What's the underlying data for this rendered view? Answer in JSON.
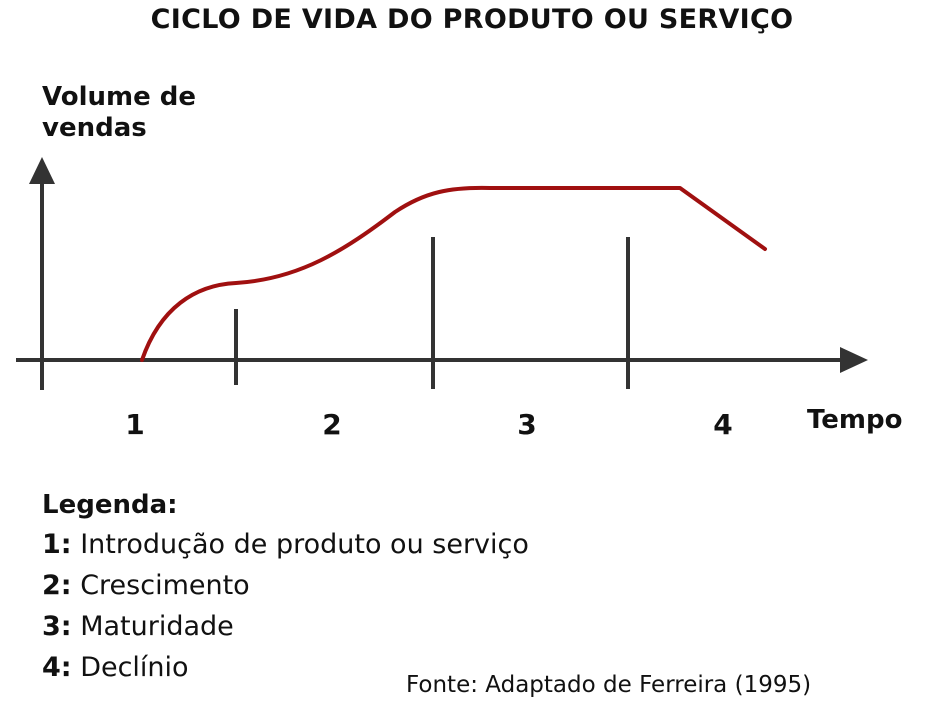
{
  "title": "CICLO DE VIDA DO PRODUTO OU SERVIÇO",
  "axes": {
    "y_label_lines": [
      "Volume de",
      "vendas"
    ],
    "x_label": "Tempo"
  },
  "stages": [
    "1",
    "2",
    "3",
    "4"
  ],
  "legend": {
    "title": "Legenda:",
    "items": [
      {
        "num": "1:",
        "label": "Introdução de produto ou serviço"
      },
      {
        "num": "2:",
        "label": "Crescimento"
      },
      {
        "num": "3:",
        "label": "Maturidade"
      },
      {
        "num": "4:",
        "label": "Declínio"
      }
    ]
  },
  "source": "Fonte: Adaptado de Ferreira (1995)",
  "colors": {
    "curve": "#a01010",
    "axes": "#333333",
    "text": "#111111"
  }
}
